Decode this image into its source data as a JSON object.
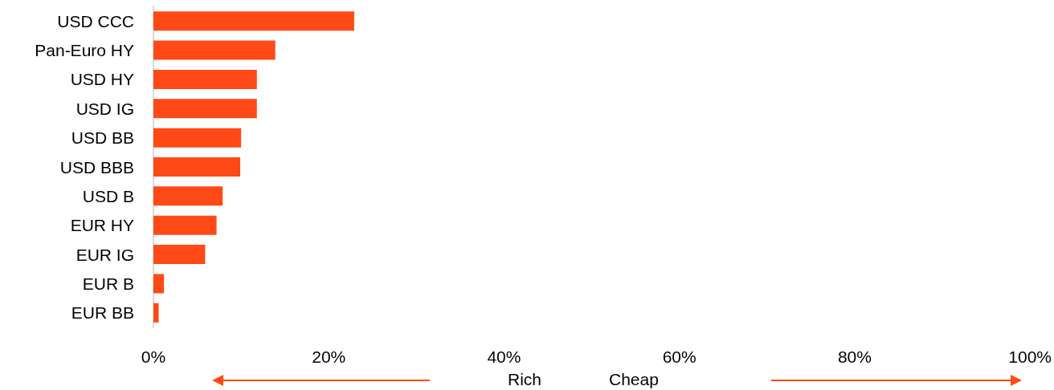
{
  "chart_data": {
    "type": "bar",
    "orientation": "horizontal",
    "categories": [
      "USD CCC",
      "Pan-Euro HY",
      "USD HY",
      "USD IG",
      "USD BB",
      "USD BBB",
      "USD B",
      "EUR HY",
      "EUR IG",
      "EUR B",
      "EUR BB"
    ],
    "values": [
      22.9,
      13.9,
      11.8,
      11.8,
      10,
      9.9,
      7.9,
      7.2,
      5.9,
      1.2,
      0.6
    ],
    "color": "#ff4a17",
    "xlim": [
      0,
      100
    ],
    "xticks": [
      {
        "value": 0,
        "label": "0%"
      },
      {
        "value": 20,
        "label": "20%"
      },
      {
        "value": 40,
        "label": "40%"
      },
      {
        "value": 60,
        "label": "60%"
      },
      {
        "value": 80,
        "label": "80%"
      },
      {
        "value": 100,
        "label": "100%"
      }
    ],
    "grid": false,
    "annotations": [
      "Rich",
      "Cheap"
    ]
  }
}
